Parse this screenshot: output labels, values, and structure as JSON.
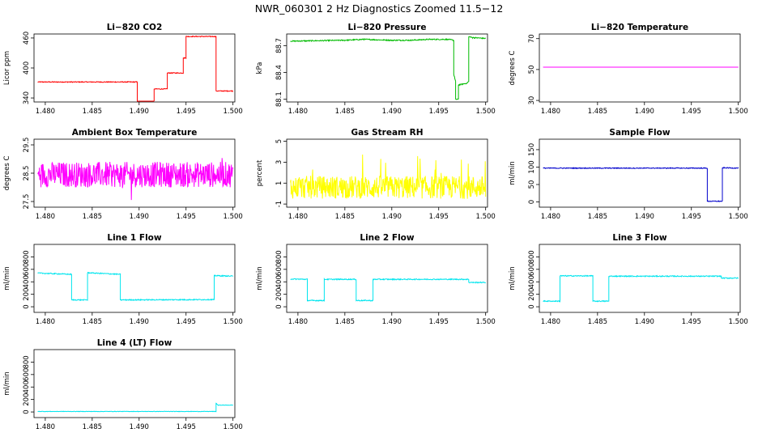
{
  "title": "NWR_060301  2 Hz Diagnostics Zoomed 11.5−12",
  "chart_data": [
    {
      "id": "co2",
      "type": "line",
      "title": "Li−820 CO2",
      "ylabel": "Licor ppm",
      "color": "#ff0000",
      "xlim": [
        1.4788,
        1.5002
      ],
      "ylim": [
        332,
        468
      ],
      "yticks": [
        340,
        400,
        460
      ],
      "xticks": [
        "1.480",
        "1.485",
        "1.490",
        "1.495",
        "1.500"
      ],
      "noise": 0.8,
      "points": [
        [
          1.4792,
          372
        ],
        [
          1.4898,
          372
        ],
        [
          1.4898,
          333
        ],
        [
          1.4916,
          333
        ],
        [
          1.4916,
          358
        ],
        [
          1.493,
          358
        ],
        [
          1.493,
          390
        ],
        [
          1.4947,
          390
        ],
        [
          1.4947,
          420
        ],
        [
          1.495,
          420
        ],
        [
          1.495,
          463
        ],
        [
          1.4982,
          463
        ],
        [
          1.4982,
          354
        ],
        [
          1.5,
          354
        ]
      ]
    },
    {
      "id": "pressure",
      "type": "line",
      "title": "Li−820 Pressure",
      "ylabel": "kPa",
      "color": "#00bb00",
      "xlim": [
        1.4788,
        1.5002
      ],
      "ylim": [
        88.07,
        88.83
      ],
      "yticks": [
        88.1,
        88.4,
        88.7
      ],
      "yticklabels": [
        "88.1",
        "88.4",
        "88.7"
      ],
      "xticks": [
        "1.480",
        "1.485",
        "1.490",
        "1.495",
        "1.500"
      ],
      "noise": 0.006,
      "points": [
        [
          1.4792,
          88.75
        ],
        [
          1.485,
          88.76
        ],
        [
          1.487,
          88.77
        ],
        [
          1.49,
          88.76
        ],
        [
          1.492,
          88.76
        ],
        [
          1.494,
          88.77
        ],
        [
          1.496,
          88.77
        ],
        [
          1.4966,
          88.76
        ],
        [
          1.4966,
          88.38
        ],
        [
          1.4968,
          88.3
        ],
        [
          1.4968,
          88.1
        ],
        [
          1.4971,
          88.1
        ],
        [
          1.4971,
          88.26
        ],
        [
          1.498,
          88.28
        ],
        [
          1.4982,
          88.3
        ],
        [
          1.4982,
          88.8
        ],
        [
          1.4986,
          88.79
        ],
        [
          1.5,
          88.78
        ]
      ]
    },
    {
      "id": "temperature",
      "type": "line",
      "title": "Li−820 Temperature",
      "ylabel": "degrees C",
      "color": "#ff00ff",
      "xlim": [
        1.4788,
        1.5002
      ],
      "ylim": [
        29,
        73
      ],
      "yticks": [
        30,
        50,
        70
      ],
      "xticks": [
        "1.480",
        "1.485",
        "1.490",
        "1.495",
        "1.500"
      ],
      "noise": 0,
      "points": [
        [
          1.4792,
          51.5
        ],
        [
          1.5,
          51.5
        ]
      ]
    },
    {
      "id": "box-temp",
      "type": "line",
      "title": "Ambient Box Temperature",
      "ylabel": "degrees C",
      "color": "#ff00ff",
      "xlim": [
        1.4788,
        1.5002
      ],
      "ylim": [
        27.3,
        29.7
      ],
      "yticks": [
        27.5,
        28.5,
        29.5
      ],
      "yticklabels": [
        "27.5",
        "28.5",
        "29.5"
      ],
      "xticks": [
        "1.480",
        "1.485",
        "1.490",
        "1.495",
        "1.500"
      ],
      "noise": 0.5,
      "points": [
        [
          1.4792,
          28.45
        ],
        [
          1.5,
          28.45
        ]
      ]
    },
    {
      "id": "rh",
      "type": "line",
      "title": "Gas Stream RH",
      "ylabel": "percent",
      "color": "#ffff00",
      "xlim": [
        1.4788,
        1.5002
      ],
      "ylim": [
        -1.3,
        5.2
      ],
      "yticks": [
        -1,
        1,
        3,
        5
      ],
      "xticks": [
        "1.480",
        "1.485",
        "1.490",
        "1.495",
        "1.500"
      ],
      "noise": 1.0,
      "points": [
        [
          1.4792,
          0.6
        ],
        [
          1.5,
          0.6
        ]
      ]
    },
    {
      "id": "sample-flow",
      "type": "line",
      "title": "Sample Flow",
      "ylabel": "ml/min",
      "color": "#0000cc",
      "xlim": [
        1.4788,
        1.5002
      ],
      "ylim": [
        -15,
        180
      ],
      "yticks": [
        0,
        50,
        100,
        150
      ],
      "xticks": [
        "1.480",
        "1.485",
        "1.490",
        "1.495",
        "1.500"
      ],
      "noise": 1.2,
      "points": [
        [
          1.4792,
          97
        ],
        [
          1.4967,
          97
        ],
        [
          1.4967,
          2
        ],
        [
          1.4983,
          2
        ],
        [
          1.4983,
          98
        ],
        [
          1.5,
          97
        ]
      ]
    },
    {
      "id": "line1",
      "type": "line",
      "title": "Line 1 Flow",
      "ylabel": "ml/min",
      "color": "#00e5ee",
      "xlim": [
        1.4788,
        1.5002
      ],
      "ylim": [
        -90,
        1000
      ],
      "yticks": [
        0,
        200,
        400,
        600,
        800
      ],
      "xticks": [
        "1.480",
        "1.485",
        "1.490",
        "1.495",
        "1.500"
      ],
      "noise": 8,
      "points": [
        [
          1.4792,
          540
        ],
        [
          1.4828,
          520
        ],
        [
          1.4828,
          110
        ],
        [
          1.4845,
          110
        ],
        [
          1.4845,
          545
        ],
        [
          1.488,
          520
        ],
        [
          1.488,
          110
        ],
        [
          1.498,
          115
        ],
        [
          1.498,
          500
        ],
        [
          1.5,
          490
        ]
      ]
    },
    {
      "id": "line2",
      "type": "line",
      "title": "Line 2 Flow",
      "ylabel": "ml/min",
      "color": "#00e5ee",
      "xlim": [
        1.4788,
        1.5002
      ],
      "ylim": [
        -90,
        1000
      ],
      "yticks": [
        0,
        200,
        400,
        600,
        800
      ],
      "xticks": [
        "1.480",
        "1.485",
        "1.490",
        "1.495",
        "1.500"
      ],
      "noise": 8,
      "points": [
        [
          1.4792,
          445
        ],
        [
          1.481,
          440
        ],
        [
          1.481,
          100
        ],
        [
          1.4828,
          100
        ],
        [
          1.4828,
          440
        ],
        [
          1.4862,
          440
        ],
        [
          1.4862,
          100
        ],
        [
          1.488,
          100
        ],
        [
          1.488,
          440
        ],
        [
          1.4982,
          440
        ],
        [
          1.4982,
          390
        ],
        [
          1.5,
          390
        ]
      ]
    },
    {
      "id": "line3",
      "type": "line",
      "title": "Line 3 Flow",
      "ylabel": "ml/min",
      "color": "#00e5ee",
      "xlim": [
        1.4788,
        1.5002
      ],
      "ylim": [
        -90,
        1000
      ],
      "yticks": [
        0,
        200,
        400,
        600,
        800
      ],
      "xticks": [
        "1.480",
        "1.485",
        "1.490",
        "1.495",
        "1.500"
      ],
      "noise": 8,
      "points": [
        [
          1.4792,
          90
        ],
        [
          1.481,
          90
        ],
        [
          1.481,
          495
        ],
        [
          1.4845,
          495
        ],
        [
          1.4845,
          90
        ],
        [
          1.4862,
          90
        ],
        [
          1.4862,
          490
        ],
        [
          1.4982,
          490
        ],
        [
          1.4982,
          460
        ],
        [
          1.5,
          460
        ]
      ]
    },
    {
      "id": "line4",
      "type": "line",
      "title": "Line 4 (LT) Flow",
      "ylabel": "ml/min",
      "color": "#00e5ee",
      "xlim": [
        1.4788,
        1.5002
      ],
      "ylim": [
        -90,
        1000
      ],
      "yticks": [
        0,
        200,
        400,
        600,
        800
      ],
      "xticks": [
        "1.480",
        "1.485",
        "1.490",
        "1.495",
        "1.500"
      ],
      "noise": 3,
      "points": [
        [
          1.4792,
          8
        ],
        [
          1.4982,
          8
        ],
        [
          1.4982,
          140
        ],
        [
          1.4984,
          110
        ],
        [
          1.5,
          110
        ]
      ]
    }
  ]
}
